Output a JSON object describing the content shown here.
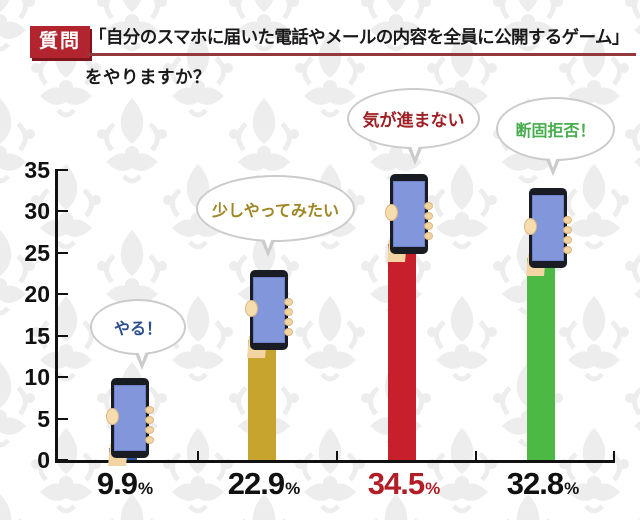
{
  "header": {
    "badge": "質問",
    "title_line1": "「自分のスマホに届いた電話やメールの内容を全員に公開するゲーム」",
    "title_line2": "をやりますか？"
  },
  "chart_data": {
    "type": "bar",
    "title": "「自分のスマホに届いた電話やメールの内容を全員に公開するゲーム」をやりますか？",
    "categories": [
      "やる！",
      "少しやってみたい",
      "気が進まない",
      "断固拒否！"
    ],
    "values": [
      9.9,
      22.9,
      34.5,
      32.8
    ],
    "value_labels": [
      "9.9",
      "22.9",
      "34.5",
      "32.8"
    ],
    "unit": "%",
    "xlabel": "",
    "ylabel": "",
    "ylim": [
      0,
      35
    ],
    "yticks": [
      0,
      5,
      10,
      15,
      20,
      25,
      30,
      35
    ],
    "grid": false,
    "legend": "none",
    "bar_colors": [
      "#2b57a7",
      "#c7a42e",
      "#c8202a",
      "#4cb944"
    ],
    "bubble_text_colors": [
      "#2c4f8f",
      "#9d8624",
      "#9e2025",
      "#47ad4d"
    ],
    "pct_label_colors": [
      "#111111",
      "#111111",
      "#b21e28",
      "#111111"
    ],
    "style_note": "each bar is an arm sleeve holding up a smartphone; damask pattern background"
  },
  "colors": {
    "badge_bg": "#b2252e",
    "underline": "#93383c",
    "axis": "#111111",
    "phone_frame": "#1a1c23",
    "phone_screen": "#8297db",
    "hand": "#f2d5a2",
    "pattern": "#ededed"
  }
}
